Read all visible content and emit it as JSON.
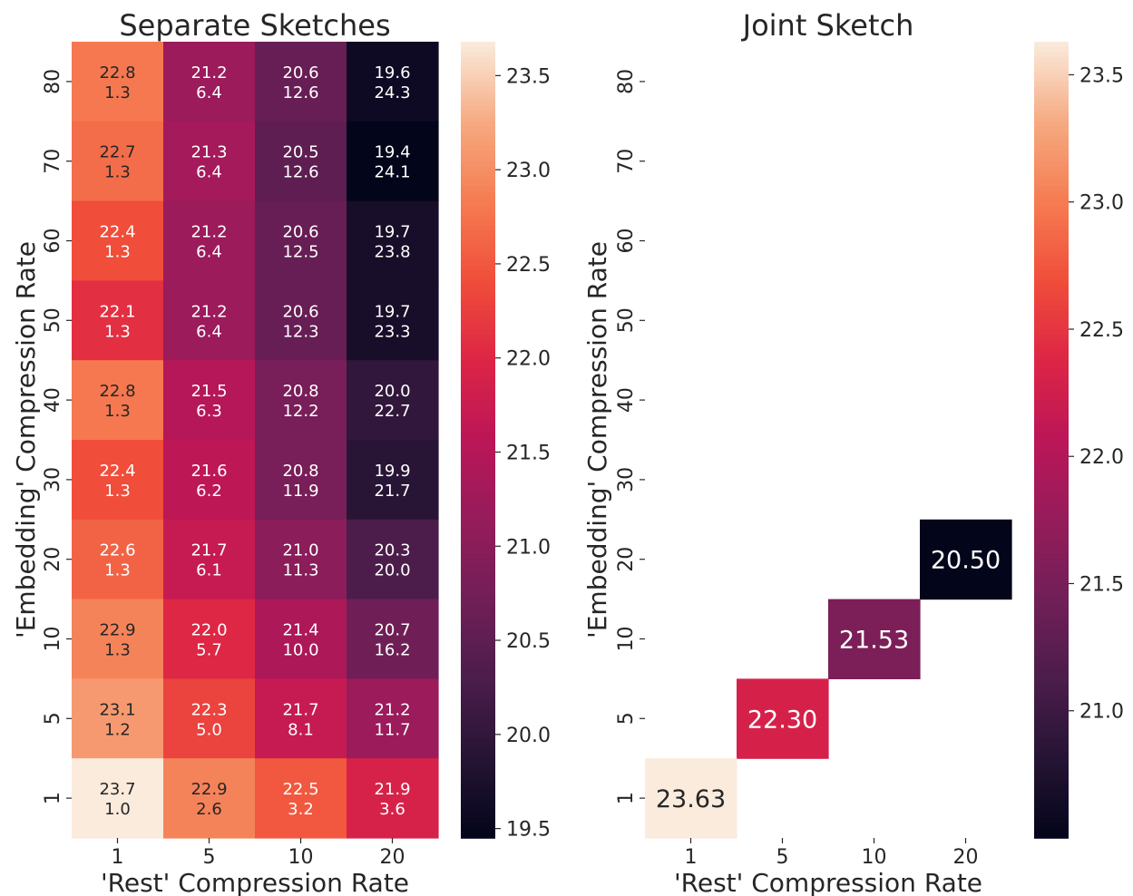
{
  "chart_data": [
    {
      "type": "heatmap",
      "title": "Separate Sketches",
      "xlabel": "'Rest' Compression Rate",
      "ylabel": "'Embedding' Compression Rate",
      "x_categories": [
        "1",
        "5",
        "10",
        "20"
      ],
      "y_categories": [
        "80",
        "70",
        "60",
        "50",
        "40",
        "30",
        "20",
        "10",
        "5",
        "1"
      ],
      "values": [
        [
          22.8,
          21.2,
          20.6,
          19.6
        ],
        [
          22.7,
          21.3,
          20.5,
          19.4
        ],
        [
          22.4,
          21.2,
          20.6,
          19.7
        ],
        [
          22.1,
          21.2,
          20.6,
          19.7
        ],
        [
          22.8,
          21.5,
          20.8,
          20.0
        ],
        [
          22.4,
          21.6,
          20.8,
          19.9
        ],
        [
          22.6,
          21.7,
          21.0,
          20.3
        ],
        [
          22.9,
          22.0,
          21.4,
          20.7
        ],
        [
          23.1,
          22.3,
          21.7,
          21.2
        ],
        [
          23.7,
          22.9,
          22.5,
          21.9
        ]
      ],
      "secondary_values": [
        [
          1.3,
          6.4,
          12.6,
          24.3
        ],
        [
          1.3,
          6.4,
          12.6,
          24.1
        ],
        [
          1.3,
          6.4,
          12.5,
          23.8
        ],
        [
          1.3,
          6.4,
          12.3,
          23.3
        ],
        [
          1.3,
          6.3,
          12.2,
          22.7
        ],
        [
          1.3,
          6.2,
          11.9,
          21.7
        ],
        [
          1.3,
          6.1,
          11.3,
          20.0
        ],
        [
          1.3,
          5.7,
          10.0,
          16.2
        ],
        [
          1.2,
          5.0,
          8.1,
          11.7
        ],
        [
          1.0,
          2.6,
          3.2,
          3.6
        ]
      ],
      "value_decimals": 1,
      "colormap": "rocket",
      "colorbar": {
        "vmin": 19.45,
        "vmax": 23.68,
        "ticks": [
          19.5,
          20.0,
          20.5,
          21.0,
          21.5,
          22.0,
          22.5,
          23.0,
          23.5
        ],
        "tick_labels": [
          "19.5",
          "20.0",
          "20.5",
          "21.0",
          "21.5",
          "22.0",
          "22.5",
          "23.0",
          "23.5"
        ]
      }
    },
    {
      "type": "heatmap",
      "title": "Joint Sketch",
      "xlabel": "'Rest' Compression Rate",
      "ylabel": "'Embedding' Compression Rate",
      "x_categories": [
        "1",
        "5",
        "10",
        "20"
      ],
      "y_categories": [
        "80",
        "70",
        "60",
        "50",
        "40",
        "30",
        "20",
        "10",
        "5",
        "1"
      ],
      "values": [
        [
          null,
          null,
          null,
          null
        ],
        [
          null,
          null,
          null,
          null
        ],
        [
          null,
          null,
          null,
          null
        ],
        [
          null,
          null,
          null,
          null
        ],
        [
          null,
          null,
          null,
          null
        ],
        [
          null,
          null,
          null,
          null
        ],
        [
          null,
          null,
          null,
          20.5
        ],
        [
          null,
          null,
          21.53,
          null
        ],
        [
          null,
          22.3,
          null,
          null
        ],
        [
          23.63,
          null,
          null,
          null
        ]
      ],
      "value_decimals": 2,
      "colormap": "rocket",
      "colorbar": {
        "vmin": 20.5,
        "vmax": 23.63,
        "ticks": [
          21.0,
          21.5,
          22.0,
          22.5,
          23.0,
          23.5
        ],
        "tick_labels": [
          "21.0",
          "21.5",
          "22.0",
          "22.5",
          "23.0",
          "23.5"
        ]
      }
    }
  ]
}
